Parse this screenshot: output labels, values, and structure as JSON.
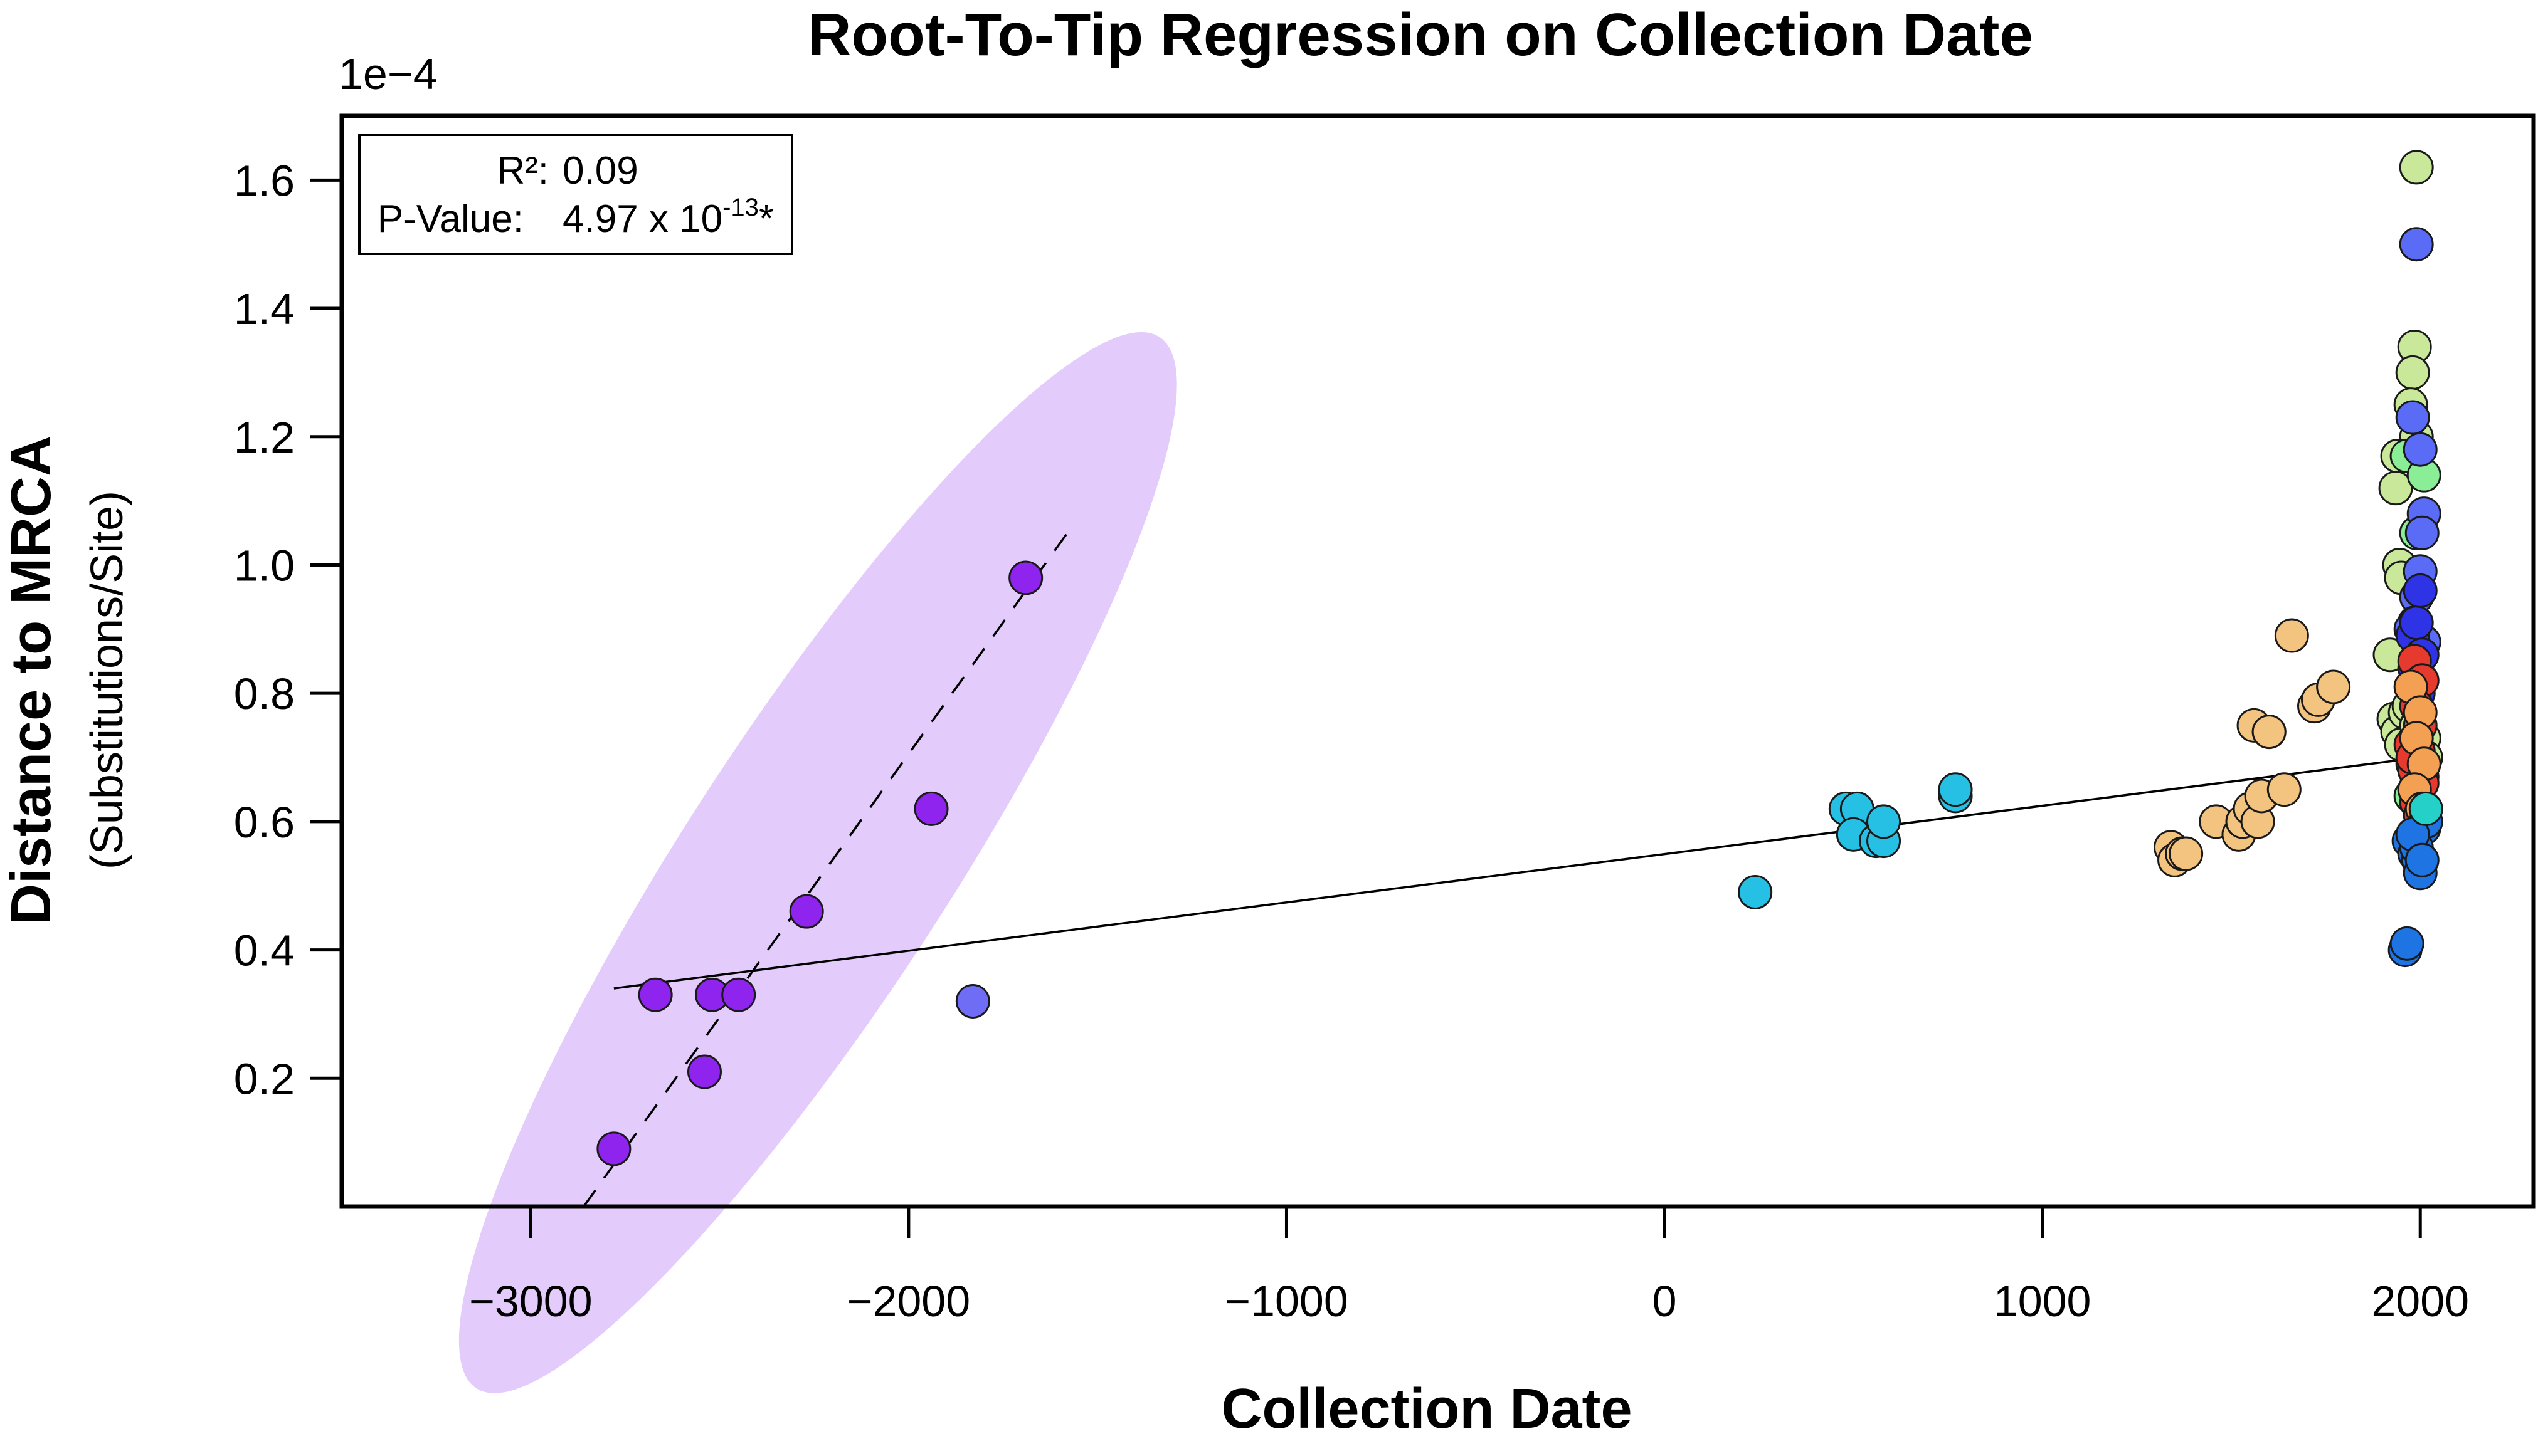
{
  "chart_data": {
    "type": "scatter",
    "title": "Root-To-Tip Regression on Collection Date",
    "xlabel": "Collection Date",
    "ylabel": "Distance to MRCA",
    "ylabel_sub": "(Substitutions/Site)",
    "y_multiplier_label": "1e−4",
    "xlim": [
      -3500,
      2300
    ],
    "ylim": [
      0.0,
      1.7
    ],
    "xticks": [
      -3000,
      -2000,
      -1000,
      0,
      1000,
      2000
    ],
    "xtick_labels": [
      "−3000",
      "−2000",
      "−1000",
      "0",
      "1000",
      "2000"
    ],
    "yticks": [
      0.2,
      0.4,
      0.6,
      0.8,
      1.0,
      1.2,
      1.4,
      1.6
    ],
    "ytick_labels": [
      "0.2",
      "0.4",
      "0.6",
      "0.8",
      "1.0",
      "1.2",
      "1.4",
      "1.6"
    ],
    "stats": {
      "r2_label": "R²:",
      "r2_value": "0.09",
      "p_label": "P-Value:",
      "p_value_base": "4.97 x 10",
      "p_value_exp": "-13",
      "p_value_suffix": "*"
    },
    "regression_lines": [
      {
        "style": "solid",
        "x": [
          -2780,
          2000
        ],
        "y": [
          0.34,
          0.7
        ]
      },
      {
        "style": "dashed",
        "x": [
          -2860,
          -1580
        ],
        "y": [
          0.0,
          1.05
        ]
      }
    ],
    "highlight_ellipse": {
      "color": "#E3CCFB",
      "cx": -2240,
      "cy": 0.536,
      "rx_data": 1170,
      "ry_value": 0.47
    },
    "series": [
      {
        "color": "#8F24EE",
        "points": [
          [
            -2780,
            0.09
          ],
          [
            -2670,
            0.33
          ],
          [
            -2540,
            0.21
          ],
          [
            -2520,
            0.33
          ],
          [
            -2450,
            0.33
          ],
          [
            -2270,
            0.46
          ],
          [
            -1940,
            0.62
          ],
          [
            -1690,
            0.98
          ]
        ]
      },
      {
        "color": "#6F6CF5",
        "points": [
          [
            -1830,
            0.32
          ]
        ]
      },
      {
        "color": "#27C0E5",
        "points": [
          [
            240,
            0.49
          ],
          [
            480,
            0.62
          ],
          [
            510,
            0.62
          ],
          [
            500,
            0.58
          ],
          [
            560,
            0.57
          ],
          [
            580,
            0.57
          ],
          [
            580,
            0.6
          ],
          [
            770,
            0.64
          ],
          [
            770,
            0.65
          ]
        ]
      },
      {
        "color": "#F3C47F",
        "points": [
          [
            1340,
            0.56
          ],
          [
            1350,
            0.54
          ],
          [
            1370,
            0.55
          ],
          [
            1380,
            0.55
          ],
          [
            1460,
            0.6
          ],
          [
            1520,
            0.58
          ],
          [
            1530,
            0.6
          ],
          [
            1550,
            0.62
          ],
          [
            1560,
            0.75
          ],
          [
            1570,
            0.6
          ],
          [
            1580,
            0.64
          ],
          [
            1600,
            0.74
          ],
          [
            1600,
            0.74
          ],
          [
            1640,
            0.65
          ],
          [
            1660,
            0.89
          ],
          [
            1720,
            0.78
          ],
          [
            1730,
            0.79
          ],
          [
            1770,
            0.81
          ]
        ]
      },
      {
        "color": "#C9E89A",
        "points": [
          [
            1990,
            1.62
          ],
          [
            1985,
            1.34
          ],
          [
            1980,
            1.3
          ],
          [
            1975,
            1.25
          ],
          [
            1990,
            1.2
          ],
          [
            1940,
            1.17
          ],
          [
            1935,
            1.12
          ],
          [
            1945,
            1.0
          ],
          [
            1950,
            0.98
          ],
          [
            1920,
            0.86
          ],
          [
            1930,
            0.76
          ],
          [
            1940,
            0.74
          ],
          [
            1950,
            0.72
          ],
          [
            1960,
            0.77
          ],
          [
            1985,
            0.8
          ],
          [
            2010,
            0.73
          ],
          [
            2015,
            0.7
          ],
          [
            1970,
            0.78
          ],
          [
            1990,
            0.75
          ]
        ]
      },
      {
        "color": "#8AEE96",
        "points": [
          [
            1965,
            1.17
          ],
          [
            2010,
            1.14
          ],
          [
            1990,
            1.05
          ],
          [
            2000,
            0.66
          ],
          [
            2010,
            0.62
          ],
          [
            1980,
            0.69
          ],
          [
            1995,
            0.58
          ],
          [
            1975,
            0.64
          ],
          [
            2005,
            0.67
          ]
        ]
      },
      {
        "color": "#5A6BF6",
        "points": [
          [
            1990,
            1.5
          ],
          [
            1980,
            1.23
          ],
          [
            2000,
            1.18
          ],
          [
            2010,
            1.08
          ],
          [
            2005,
            1.05
          ],
          [
            2000,
            0.99
          ],
          [
            1990,
            0.95
          ],
          [
            1985,
            0.91
          ],
          [
            2010,
            0.88
          ],
          [
            1975,
            0.9
          ],
          [
            1995,
            0.86
          ],
          [
            1990,
            0.83
          ]
        ]
      },
      {
        "color": "#2E34E6",
        "points": [
          [
            1980,
            0.89
          ],
          [
            1990,
            0.91
          ],
          [
            2000,
            0.96
          ],
          [
            1985,
            0.84
          ],
          [
            2005,
            0.86
          ],
          [
            1995,
            0.8
          ]
        ]
      },
      {
        "color": "#E53A2D",
        "points": [
          [
            1985,
            0.85
          ],
          [
            2005,
            0.82
          ],
          [
            1990,
            0.78
          ],
          [
            2000,
            0.75
          ],
          [
            1995,
            0.71
          ],
          [
            1985,
            0.68
          ],
          [
            2005,
            0.66
          ],
          [
            1990,
            0.63
          ],
          [
            2000,
            0.61
          ],
          [
            1975,
            0.72
          ],
          [
            1980,
            0.7
          ]
        ]
      },
      {
        "color": "#F3A052",
        "points": [
          [
            1975,
            0.81
          ],
          [
            2000,
            0.77
          ],
          [
            1990,
            0.73
          ],
          [
            2010,
            0.69
          ],
          [
            1985,
            0.65
          ],
          [
            2005,
            0.62
          ]
        ]
      },
      {
        "color": "#1E74E2",
        "points": [
          [
            1960,
            0.4
          ],
          [
            1965,
            0.41
          ],
          [
            1970,
            0.57
          ],
          [
            1985,
            0.55
          ],
          [
            1995,
            0.54
          ],
          [
            2000,
            0.52
          ],
          [
            2010,
            0.59
          ],
          [
            2015,
            0.6
          ],
          [
            1990,
            0.56
          ],
          [
            1980,
            0.58
          ],
          [
            2005,
            0.54
          ]
        ]
      },
      {
        "color": "#25D0C8",
        "points": [
          [
            2015,
            0.62
          ]
        ]
      }
    ]
  }
}
